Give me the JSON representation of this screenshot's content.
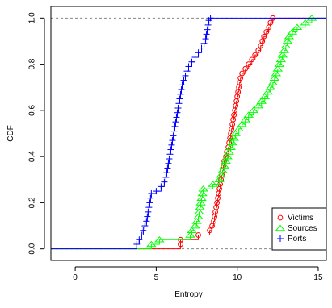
{
  "chart_data": {
    "type": "line",
    "title": "",
    "xlabel": "Entropy",
    "ylabel": "CDF",
    "xlim": [
      -1.5,
      15.5
    ],
    "ylim": [
      -0.05,
      1.05
    ],
    "x_ticks": [
      0,
      5,
      10,
      15
    ],
    "y_ticks": [
      0.0,
      0.2,
      0.4,
      0.6,
      0.8,
      1.0
    ],
    "x_tick_labels": [
      "0",
      "5",
      "10",
      "15"
    ],
    "y_tick_labels": [
      "0.0",
      "0.2",
      "0.4",
      "0.6",
      "0.8",
      "1.0"
    ],
    "reference_lines": [
      0,
      1
    ],
    "grid": false,
    "legend_position": "bottom-right",
    "series": [
      {
        "name": "Victims",
        "color": "#ff0000",
        "marker": "circle",
        "x_start": -1.5,
        "x_end": 15.5,
        "points": [
          [
            6.5,
            0.02
          ],
          [
            6.5,
            0.04
          ],
          [
            7.6,
            0.06
          ],
          [
            8.3,
            0.08
          ],
          [
            8.45,
            0.1
          ],
          [
            8.55,
            0.12
          ],
          [
            8.6,
            0.14
          ],
          [
            8.65,
            0.16
          ],
          [
            8.7,
            0.18
          ],
          [
            8.75,
            0.2
          ],
          [
            8.8,
            0.22
          ],
          [
            8.85,
            0.24
          ],
          [
            8.9,
            0.26
          ],
          [
            8.95,
            0.28
          ],
          [
            9.0,
            0.3
          ],
          [
            9.05,
            0.32
          ],
          [
            9.1,
            0.34
          ],
          [
            9.15,
            0.36
          ],
          [
            9.2,
            0.38
          ],
          [
            9.3,
            0.4
          ],
          [
            9.35,
            0.42
          ],
          [
            9.45,
            0.44
          ],
          [
            9.5,
            0.46
          ],
          [
            9.55,
            0.48
          ],
          [
            9.6,
            0.5
          ],
          [
            9.65,
            0.52
          ],
          [
            9.7,
            0.54
          ],
          [
            9.75,
            0.56
          ],
          [
            9.8,
            0.58
          ],
          [
            9.85,
            0.6
          ],
          [
            9.9,
            0.62
          ],
          [
            9.95,
            0.64
          ],
          [
            10.0,
            0.66
          ],
          [
            10.05,
            0.68
          ],
          [
            10.1,
            0.7
          ],
          [
            10.15,
            0.72
          ],
          [
            10.2,
            0.74
          ],
          [
            10.3,
            0.76
          ],
          [
            10.5,
            0.78
          ],
          [
            10.7,
            0.8
          ],
          [
            10.9,
            0.82
          ],
          [
            11.1,
            0.84
          ],
          [
            11.3,
            0.86
          ],
          [
            11.45,
            0.88
          ],
          [
            11.55,
            0.9
          ],
          [
            11.65,
            0.92
          ],
          [
            11.8,
            0.94
          ],
          [
            11.95,
            0.96
          ],
          [
            12.05,
            0.98
          ],
          [
            12.2,
            1.0
          ]
        ]
      },
      {
        "name": "Sources",
        "color": "#00ff00",
        "marker": "triangle",
        "x_start": -1.5,
        "x_end": 15.5,
        "points": [
          [
            4.7,
            0.02
          ],
          [
            5.2,
            0.04
          ],
          [
            7.1,
            0.06
          ],
          [
            7.2,
            0.08
          ],
          [
            7.4,
            0.1
          ],
          [
            7.5,
            0.12
          ],
          [
            7.6,
            0.14
          ],
          [
            7.65,
            0.16
          ],
          [
            7.7,
            0.18
          ],
          [
            7.75,
            0.2
          ],
          [
            7.8,
            0.22
          ],
          [
            7.85,
            0.24
          ],
          [
            7.9,
            0.26
          ],
          [
            8.5,
            0.28
          ],
          [
            8.9,
            0.3
          ],
          [
            9.0,
            0.32
          ],
          [
            9.1,
            0.34
          ],
          [
            9.2,
            0.36
          ],
          [
            9.3,
            0.38
          ],
          [
            9.4,
            0.4
          ],
          [
            9.5,
            0.42
          ],
          [
            9.6,
            0.44
          ],
          [
            9.7,
            0.46
          ],
          [
            9.8,
            0.48
          ],
          [
            9.9,
            0.5
          ],
          [
            10.1,
            0.52
          ],
          [
            10.3,
            0.54
          ],
          [
            10.5,
            0.56
          ],
          [
            10.7,
            0.58
          ],
          [
            11.0,
            0.6
          ],
          [
            11.3,
            0.62
          ],
          [
            11.5,
            0.64
          ],
          [
            11.7,
            0.66
          ],
          [
            11.9,
            0.68
          ],
          [
            12.05,
            0.7
          ],
          [
            12.2,
            0.72
          ],
          [
            12.3,
            0.74
          ],
          [
            12.4,
            0.76
          ],
          [
            12.5,
            0.78
          ],
          [
            12.6,
            0.8
          ],
          [
            12.7,
            0.82
          ],
          [
            12.8,
            0.84
          ],
          [
            12.9,
            0.86
          ],
          [
            13.0,
            0.88
          ],
          [
            13.1,
            0.9
          ],
          [
            13.2,
            0.92
          ],
          [
            13.4,
            0.94
          ],
          [
            13.7,
            0.96
          ],
          [
            14.2,
            0.98
          ],
          [
            14.6,
            1.0
          ]
        ]
      },
      {
        "name": "Ports",
        "color": "#0000ff",
        "marker": "plus",
        "x_start": -1.5,
        "x_end": 15.5,
        "points": [
          [
            3.8,
            0.02
          ],
          [
            3.95,
            0.04
          ],
          [
            4.1,
            0.06
          ],
          [
            4.2,
            0.08
          ],
          [
            4.3,
            0.1
          ],
          [
            4.4,
            0.12
          ],
          [
            4.45,
            0.14
          ],
          [
            4.5,
            0.16
          ],
          [
            4.55,
            0.18
          ],
          [
            4.6,
            0.2
          ],
          [
            4.65,
            0.22
          ],
          [
            4.7,
            0.24
          ],
          [
            5.0,
            0.25
          ],
          [
            5.3,
            0.27
          ],
          [
            5.5,
            0.29
          ],
          [
            5.6,
            0.31
          ],
          [
            5.65,
            0.33
          ],
          [
            5.7,
            0.35
          ],
          [
            5.75,
            0.37
          ],
          [
            5.8,
            0.39
          ],
          [
            5.85,
            0.41
          ],
          [
            5.9,
            0.43
          ],
          [
            5.95,
            0.45
          ],
          [
            6.0,
            0.47
          ],
          [
            6.05,
            0.49
          ],
          [
            6.1,
            0.51
          ],
          [
            6.15,
            0.53
          ],
          [
            6.2,
            0.55
          ],
          [
            6.25,
            0.57
          ],
          [
            6.3,
            0.59
          ],
          [
            6.35,
            0.61
          ],
          [
            6.4,
            0.63
          ],
          [
            6.45,
            0.65
          ],
          [
            6.5,
            0.67
          ],
          [
            6.55,
            0.69
          ],
          [
            6.6,
            0.71
          ],
          [
            6.7,
            0.73
          ],
          [
            6.8,
            0.75
          ],
          [
            6.9,
            0.77
          ],
          [
            7.0,
            0.79
          ],
          [
            7.2,
            0.81
          ],
          [
            7.4,
            0.83
          ],
          [
            7.6,
            0.85
          ],
          [
            7.8,
            0.87
          ],
          [
            7.95,
            0.89
          ],
          [
            8.05,
            0.91
          ],
          [
            8.1,
            0.93
          ],
          [
            8.15,
            0.95
          ],
          [
            8.2,
            0.97
          ],
          [
            8.25,
            0.99
          ],
          [
            8.35,
            1.0
          ]
        ]
      }
    ]
  }
}
